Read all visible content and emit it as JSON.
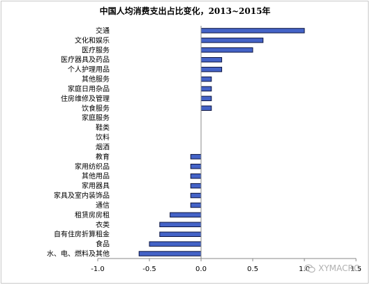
{
  "colors": {
    "bar_fill": "#4463c7",
    "bar_stroke": "#0c1440",
    "axis": "#888888",
    "text": "#000000"
  },
  "chart_data": {
    "type": "bar",
    "orientation": "horizontal",
    "title": "中国人均消费支出占比变化，2013~2015年",
    "categories": [
      "交通",
      "文化和娱乐",
      "医疗服务",
      "医疗器具及药品",
      "个人护理用品",
      "其他服务",
      "家庭日用杂品",
      "住房维修及管理",
      "饮食服务",
      "家庭服务",
      "鞋类",
      "饮料",
      "烟酒",
      "教育",
      "家用纺织品",
      "其他用品",
      "家用器具",
      "家具及室内装饰品",
      "通信",
      "租赁房房租",
      "衣类",
      "自有住房折算租金",
      "食品",
      "水、电、燃料及其他"
    ],
    "values": [
      1.0,
      0.6,
      0.5,
      0.2,
      0.2,
      0.1,
      0.1,
      0.1,
      0.1,
      0.0,
      0.0,
      0.0,
      0.0,
      -0.1,
      -0.1,
      -0.1,
      -0.1,
      -0.1,
      -0.1,
      -0.3,
      -0.4,
      -0.4,
      -0.5,
      -0.6
    ],
    "xlim": [
      -1.0,
      1.5
    ],
    "xticks": [
      -1.0,
      -0.5,
      0.0,
      0.5,
      1.0,
      1.5
    ],
    "xtick_labels": [
      "-1.0",
      "-0.5",
      "0.0",
      "0.5",
      "1.0",
      "1.5"
    ],
    "xlabel": "",
    "ylabel": "",
    "grid": false
  },
  "watermark": {
    "text": "XYMACRO",
    "icon": "wechat-icon"
  }
}
